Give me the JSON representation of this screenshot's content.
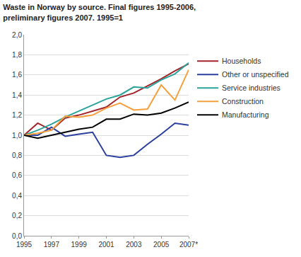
{
  "chart_data": {
    "type": "line",
    "title": "Waste in Norway by source. Final figures 1995-2006, preliminary figures 2007. 1995=1",
    "x": [
      1995,
      1996,
      1997,
      1998,
      1999,
      2000,
      2001,
      2002,
      2003,
      2004,
      2005,
      2006,
      2007
    ],
    "series": [
      {
        "name": "Households",
        "color": "#a3232b",
        "values": [
          1.0,
          1.12,
          1.05,
          1.17,
          1.2,
          1.24,
          1.28,
          1.38,
          1.42,
          1.49,
          1.56,
          1.64,
          1.71
        ]
      },
      {
        "name": "Other or unspecified",
        "color": "#2b3f9e",
        "values": [
          1.0,
          1.0,
          1.08,
          0.99,
          1.01,
          1.03,
          0.8,
          0.78,
          0.8,
          0.91,
          1.01,
          1.12,
          1.1
        ]
      },
      {
        "name": "Service industries",
        "color": "#2aa39a",
        "values": [
          1.0,
          1.05,
          1.11,
          1.18,
          1.24,
          1.3,
          1.36,
          1.4,
          1.48,
          1.47,
          1.55,
          1.61,
          1.72
        ]
      },
      {
        "name": "Construction",
        "color": "#f5a03c",
        "values": [
          1.0,
          1.02,
          1.05,
          1.19,
          1.18,
          1.2,
          1.27,
          1.32,
          1.25,
          1.26,
          1.5,
          1.35,
          1.65
        ]
      },
      {
        "name": "Manufacturing",
        "color": "#000000",
        "values": [
          1.0,
          0.97,
          1.0,
          1.03,
          1.06,
          1.08,
          1.16,
          1.16,
          1.21,
          1.2,
          1.22,
          1.27,
          1.33
        ]
      }
    ],
    "xlim": [
      1995,
      2007
    ],
    "xticks": [
      1995,
      1997,
      1999,
      2001,
      2003,
      2005,
      {
        "value": 2007,
        "label": "2007*"
      }
    ],
    "ylim": [
      0,
      2
    ],
    "yticks": [
      {
        "value": 0,
        "label": "0,0"
      },
      {
        "value": 0.2,
        "label": "0,2"
      },
      {
        "value": 0.4,
        "label": "0,4"
      },
      {
        "value": 0.6,
        "label": "0,6"
      },
      {
        "value": 0.8,
        "label": "0,8"
      },
      {
        "value": 1.0,
        "label": "1,0"
      },
      {
        "value": 1.2,
        "label": "1,2"
      },
      {
        "value": 1.4,
        "label": "1,4"
      },
      {
        "value": 1.6,
        "label": "1,6"
      },
      {
        "value": 1.8,
        "label": "1,8"
      },
      {
        "value": 2.0,
        "label": "2,0"
      }
    ],
    "grid": true,
    "legend": "right"
  }
}
